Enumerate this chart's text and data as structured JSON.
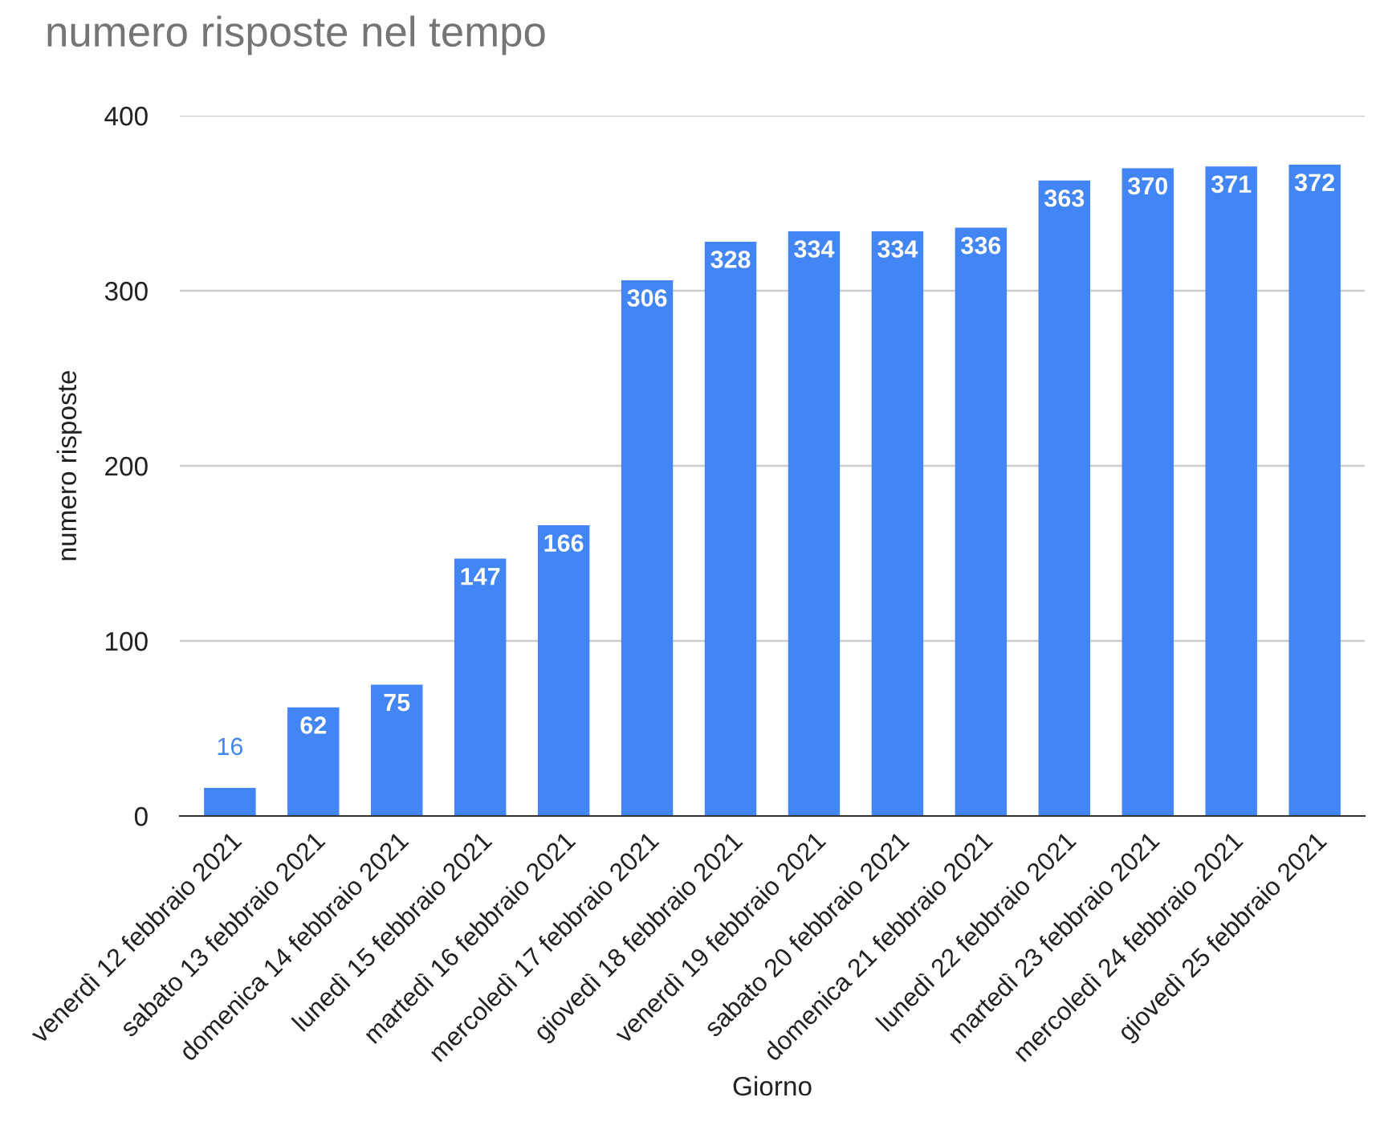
{
  "chart_data": {
    "type": "bar",
    "title": "numero risposte nel tempo",
    "xlabel": "Giorno",
    "ylabel": "numero risposte",
    "categories": [
      "venerdì 12 febbraio 2021",
      "sabato 13 febbraio 2021",
      "domenica 14 febbraio 2021",
      "lunedì 15 febbraio 2021",
      "martedì 16 febbraio 2021",
      "mercoledì 17 febbraio 2021",
      "giovedì 18 febbraio 2021",
      "venerdì 19 febbraio 2021",
      "sabato 20 febbraio 2021",
      "domenica 21 febbraio 2021",
      "lunedì 22 febbraio 2021",
      "martedì 23 febbraio 2021",
      "mercoledì 24 febbraio 2021",
      "giovedì 25 febbraio 2021"
    ],
    "values": [
      16,
      62,
      75,
      147,
      166,
      306,
      328,
      334,
      334,
      336,
      363,
      370,
      371,
      372
    ],
    "color": "#4285f4",
    "ylim": [
      0,
      400
    ],
    "yticks": [
      0,
      100,
      200,
      300,
      400
    ],
    "grid": "y",
    "data_labels": true
  }
}
